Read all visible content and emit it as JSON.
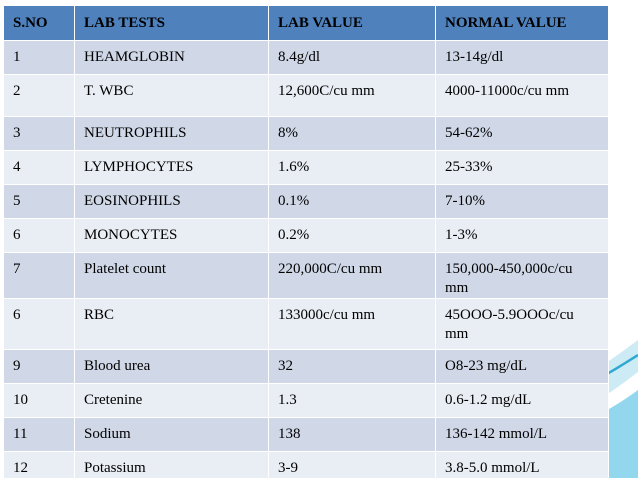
{
  "table": {
    "headers": [
      "S.NO",
      "LAB TESTS",
      "LAB VALUE",
      "NORMAL VALUE"
    ],
    "rows": [
      [
        "1",
        "HEAMGLOBIN",
        "8.4g/dl",
        "13-14g/dl"
      ],
      [
        "2",
        "T. WBC",
        "12,600C/cu mm",
        "4000-11000c/cu mm"
      ],
      [
        "3",
        "NEUTROPHILS",
        "8%",
        "54-62%"
      ],
      [
        "4",
        "LYMPHOCYTES",
        "1.6%",
        "25-33%"
      ],
      [
        "5",
        "EOSINOPHILS",
        "0.1%",
        "7-10%"
      ],
      [
        "6",
        "MONOCYTES",
        "0.2%",
        "1-3%"
      ],
      [
        "7",
        "Platelet count",
        "220,000C/cu mm",
        "150,000-450,000c/cu mm"
      ],
      [
        "6",
        "RBC",
        "133000c/cu mm",
        "45OOO-5.9OOOc/cu mm"
      ],
      [
        "9",
        "Blood urea",
        "32",
        "O8-23 mg/dL"
      ],
      [
        "10",
        "Cretenine",
        "1.3",
        "0.6-1.2 mg/dL"
      ],
      [
        "11",
        "Sodium",
        "138",
        "136-142 mmol/L"
      ],
      [
        "12",
        "Potassium",
        "3-9",
        "3.8-5.0 mmol/L"
      ]
    ]
  },
  "colors": {
    "header": "#4f81bd",
    "row_odd": "#d0d8e8",
    "row_even": "#e9edf4",
    "accent": "#2fa9d2"
  }
}
